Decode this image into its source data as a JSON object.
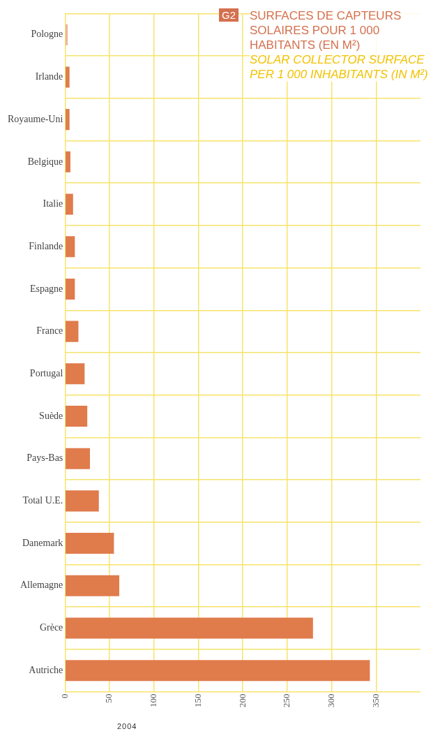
{
  "chart_data": {
    "type": "bar",
    "orientation": "horizontal",
    "title": "SURFACES DE CAPTEURS SOLAIRES POUR 1 000 HABITANTS (EN M²)",
    "subtitle": "SOLAR COLLECTOR SURFACE PER 1 000 INHABITANTS (IN M²)",
    "categories": [
      "Pologne",
      "Irlande",
      "Royaume-Uni",
      "Belgique",
      "Italie",
      "Finlande",
      "Espagne",
      "France",
      "Portugal",
      "Suède",
      "Pays-Bas",
      "Total U.E.",
      "Danemark",
      "Allemagne",
      "Grèce",
      "Autriche"
    ],
    "values": [
      3,
      5,
      5,
      6,
      9,
      11,
      11,
      15,
      22,
      25,
      28,
      38,
      55,
      61,
      279,
      343
    ],
    "colors": [
      "#efb49c",
      "#e07b4c",
      "#e07b4c",
      "#e07b4c",
      "#e07b4c",
      "#e07b4c",
      "#e07b4c",
      "#e07b4c",
      "#e07b4c",
      "#e07b4c",
      "#e07b4c",
      "#e07b4c",
      "#e07b4c",
      "#e07b4c",
      "#e07b4c",
      "#e07b4c"
    ],
    "xlim": [
      0,
      400
    ],
    "xticks": [
      0,
      50,
      100,
      150,
      200,
      250,
      300,
      350
    ],
    "grid": true,
    "legend": false,
    "annotations": [
      "G2",
      "2004"
    ]
  }
}
